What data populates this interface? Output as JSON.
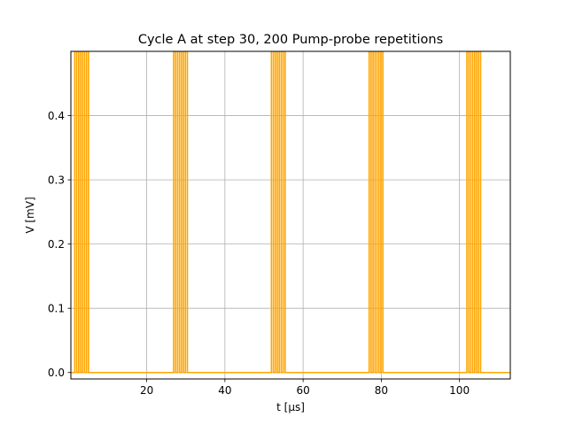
{
  "chart_data": {
    "type": "line",
    "title": "Cycle A at step 30, 200 Pump-probe repetitions",
    "xlabel_main": "t",
    "xlabel_unit": "[μs]",
    "ylabel": "V  [mV]",
    "xlim": [
      0.6,
      113
    ],
    "ylim": [
      -0.01,
      0.5
    ],
    "x_ticks": [
      20,
      40,
      60,
      80,
      100
    ],
    "x_tick_labels": [
      "20",
      "40",
      "60",
      "80",
      "100"
    ],
    "y_ticks": [
      0.0,
      0.1,
      0.2,
      0.3,
      0.4
    ],
    "y_tick_labels": [
      "0.0",
      "0.1",
      "0.2",
      "0.3",
      "0.4"
    ],
    "grid": true,
    "legend": "none",
    "series_color": "#ffa500",
    "baseline": 0.0,
    "pulse_high": 0.6,
    "pulse_groups": [
      [
        1.6,
        2.1,
        2.6,
        3.1,
        3.6,
        4.1,
        4.6,
        5.1
      ],
      [
        26.9,
        27.4,
        27.9,
        28.4,
        28.9,
        29.4,
        29.9,
        30.4
      ],
      [
        51.9,
        52.4,
        52.9,
        53.4,
        53.9,
        54.4,
        54.9,
        55.4
      ],
      [
        76.9,
        77.4,
        77.9,
        78.4,
        78.9,
        79.4,
        79.9,
        80.4
      ],
      [
        101.9,
        102.4,
        102.9,
        103.4,
        103.9,
        104.4,
        104.9,
        105.4
      ]
    ]
  }
}
